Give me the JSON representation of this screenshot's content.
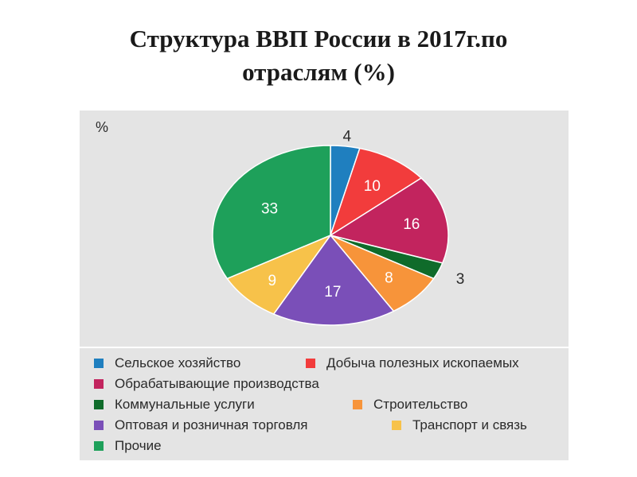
{
  "title_line1": "Структура ВВП России в 2017г.по",
  "title_line2": "отраслям (%)",
  "chart_data": {
    "type": "pie",
    "unit_label": "%",
    "slices": [
      {
        "name": "Сельское хозяйство",
        "value": 4,
        "label": "4",
        "color": "#1f7fbf"
      },
      {
        "name": "Добыча полезных ископаемых",
        "value": 10,
        "label": "10",
        "color": "#f23c3c"
      },
      {
        "name": "Обрабатывающие производства",
        "value": 16,
        "label": "16",
        "color": "#c2245e"
      },
      {
        "name": "Коммунальные услуги",
        "value": 3,
        "label": "3",
        "color": "#0f6b2a"
      },
      {
        "name": "Строительство",
        "value": 8,
        "label": "8",
        "color": "#f7943a"
      },
      {
        "name": "Оптовая и розничная торговля",
        "value": 17,
        "label": "17",
        "color": "#7a4fb8"
      },
      {
        "name": "Транспорт и связь",
        "value": 9,
        "label": "9",
        "color": "#f7c24a"
      },
      {
        "name": "Прочие",
        "value": 33,
        "label": "33",
        "color": "#1ea05a"
      }
    ],
    "legend_placement": "bottom"
  }
}
